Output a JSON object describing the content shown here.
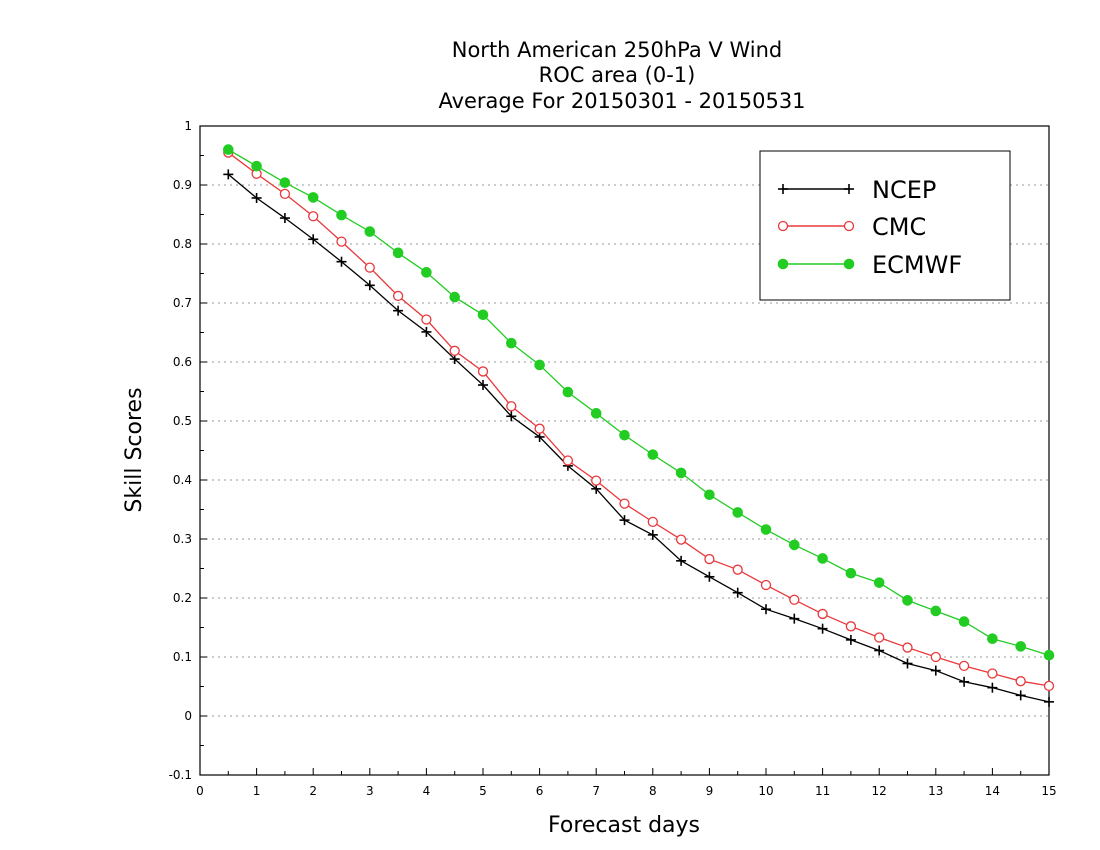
{
  "chart_data": {
    "type": "line",
    "title_lines": [
      "North American 250hPa V Wind",
      "ROC area (0-1)",
      "Average For 20150301 - 20150531"
    ],
    "xlabel": "Forecast days",
    "ylabel": "Skill Scores",
    "xlim": [
      0,
      15
    ],
    "ylim": [
      -0.1,
      1
    ],
    "xticks": [
      0,
      1,
      2,
      3,
      4,
      5,
      6,
      7,
      8,
      9,
      10,
      11,
      12,
      13,
      14,
      15
    ],
    "yticks": [
      -0.1,
      0,
      0.1,
      0.2,
      0.3,
      0.4,
      0.5,
      0.6,
      0.7,
      0.8,
      0.9,
      1
    ],
    "ytick_labels": [
      "-0.1",
      "0",
      "0.1",
      "0.2",
      "0.3",
      "0.4",
      "0.5",
      "0.6",
      "0.7",
      "0.8",
      "0.9",
      "1"
    ],
    "grid": "horizontal dotted",
    "legend_position": "top-right",
    "x": [
      0.5,
      1,
      1.5,
      2,
      2.5,
      3,
      3.5,
      4,
      4.5,
      5,
      5.5,
      6,
      6.5,
      7,
      7.5,
      8,
      8.5,
      9,
      9.5,
      10,
      10.5,
      11,
      11.5,
      12,
      12.5,
      13,
      13.5,
      14,
      14.5,
      15
    ],
    "series": [
      {
        "name": "NCEP",
        "color": "#000000",
        "marker": "plus",
        "values": [
          0.918,
          0.878,
          0.844,
          0.808,
          0.77,
          0.73,
          0.687,
          0.651,
          0.605,
          0.561,
          0.508,
          0.473,
          0.424,
          0.385,
          0.332,
          0.307,
          0.263,
          0.236,
          0.209,
          0.181,
          0.165,
          0.148,
          0.129,
          0.111,
          0.089,
          0.077,
          0.058,
          0.048,
          0.035,
          0.024
        ]
      },
      {
        "name": "CMC",
        "color": "#e8383b",
        "marker": "open-circle",
        "values": [
          0.955,
          0.919,
          0.885,
          0.847,
          0.804,
          0.76,
          0.712,
          0.672,
          0.619,
          0.584,
          0.525,
          0.487,
          0.433,
          0.399,
          0.36,
          0.329,
          0.299,
          0.266,
          0.248,
          0.222,
          0.197,
          0.173,
          0.152,
          0.133,
          0.116,
          0.1,
          0.085,
          0.072,
          0.059,
          0.051
        ]
      },
      {
        "name": "ECMWF",
        "color": "#22cc22",
        "marker": "filled-circle",
        "values": [
          0.96,
          0.932,
          0.904,
          0.879,
          0.849,
          0.821,
          0.785,
          0.752,
          0.71,
          0.68,
          0.632,
          0.595,
          0.549,
          0.513,
          0.476,
          0.443,
          0.412,
          0.375,
          0.345,
          0.316,
          0.29,
          0.267,
          0.242,
          0.226,
          0.196,
          0.178,
          0.16,
          0.131,
          0.118,
          0.103
        ]
      }
    ]
  }
}
